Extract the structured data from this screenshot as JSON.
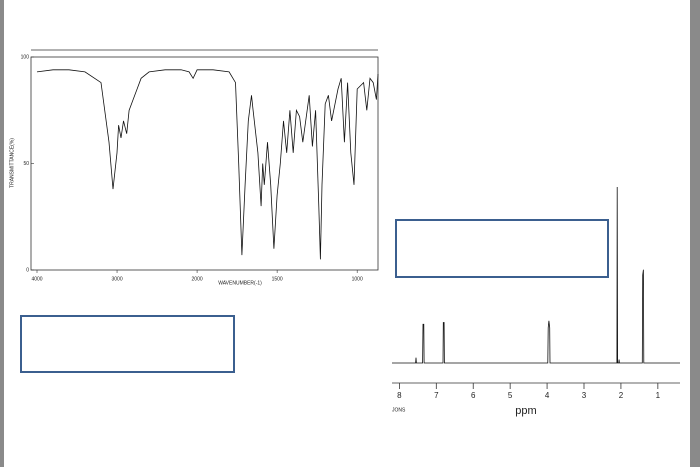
{
  "chart_data": [
    {
      "type": "line",
      "x_label": "WAVENUMBER(-1)",
      "y_label": "TRANSMITTANCE(%)",
      "xlim": [
        4000,
        870
      ],
      "xbreak": 2000,
      "xticks": [
        4000,
        3000,
        2000,
        1500,
        1000
      ],
      "ylim": [
        0,
        100
      ],
      "yticks": [
        0,
        50,
        100
      ],
      "color": "#111111",
      "x": [
        4000,
        3800,
        3600,
        3400,
        3200,
        3100,
        3050,
        3000,
        2980,
        2950,
        2920,
        2880,
        2850,
        2800,
        2750,
        2700,
        2600,
        2400,
        2200,
        2100,
        2050,
        2000,
        1900,
        1800,
        1760,
        1740,
        1720,
        1700,
        1680,
        1660,
        1650,
        1620,
        1600,
        1590,
        1580,
        1560,
        1540,
        1520,
        1500,
        1480,
        1460,
        1440,
        1420,
        1400,
        1380,
        1360,
        1340,
        1300,
        1280,
        1260,
        1240,
        1230,
        1220,
        1200,
        1180,
        1160,
        1120,
        1100,
        1080,
        1060,
        1040,
        1020,
        1000,
        960,
        940,
        920,
        900,
        880,
        870
      ],
      "values": [
        93,
        94,
        94,
        93,
        88,
        60,
        38,
        55,
        68,
        62,
        70,
        64,
        75,
        80,
        85,
        90,
        93,
        94,
        94,
        93,
        90,
        94,
        94,
        93,
        88,
        50,
        7,
        40,
        70,
        82,
        75,
        55,
        30,
        50,
        40,
        60,
        40,
        10,
        35,
        50,
        70,
        55,
        75,
        55,
        75,
        72,
        60,
        82,
        58,
        75,
        30,
        5,
        40,
        78,
        82,
        70,
        85,
        90,
        60,
        88,
        55,
        40,
        85,
        88,
        75,
        90,
        88,
        80,
        92
      ]
    },
    {
      "type": "spectrum",
      "x_label": "ppm",
      "note": "JONS",
      "xlim": [
        8.2,
        0.4
      ],
      "xticks": [
        8,
        7,
        6,
        5,
        4,
        3,
        2,
        1
      ],
      "color": "#111111",
      "x": [
        8.2,
        7.56,
        7.55,
        7.54,
        7.37,
        7.36,
        7.34,
        7.33,
        6.82,
        6.81,
        6.79,
        6.78,
        3.98,
        3.97,
        3.95,
        3.93,
        3.92,
        2.11,
        2.1,
        2.09,
        2.06,
        2.05,
        2.04,
        1.42,
        1.41,
        1.39,
        1.38,
        0.4
      ],
      "values": [
        0,
        0,
        3,
        0,
        0,
        22,
        22,
        0,
        0,
        23,
        23,
        0,
        0,
        20,
        24,
        20,
        0,
        0,
        100,
        0,
        0,
        2,
        0,
        0,
        50,
        53,
        0,
        0
      ]
    }
  ]
}
